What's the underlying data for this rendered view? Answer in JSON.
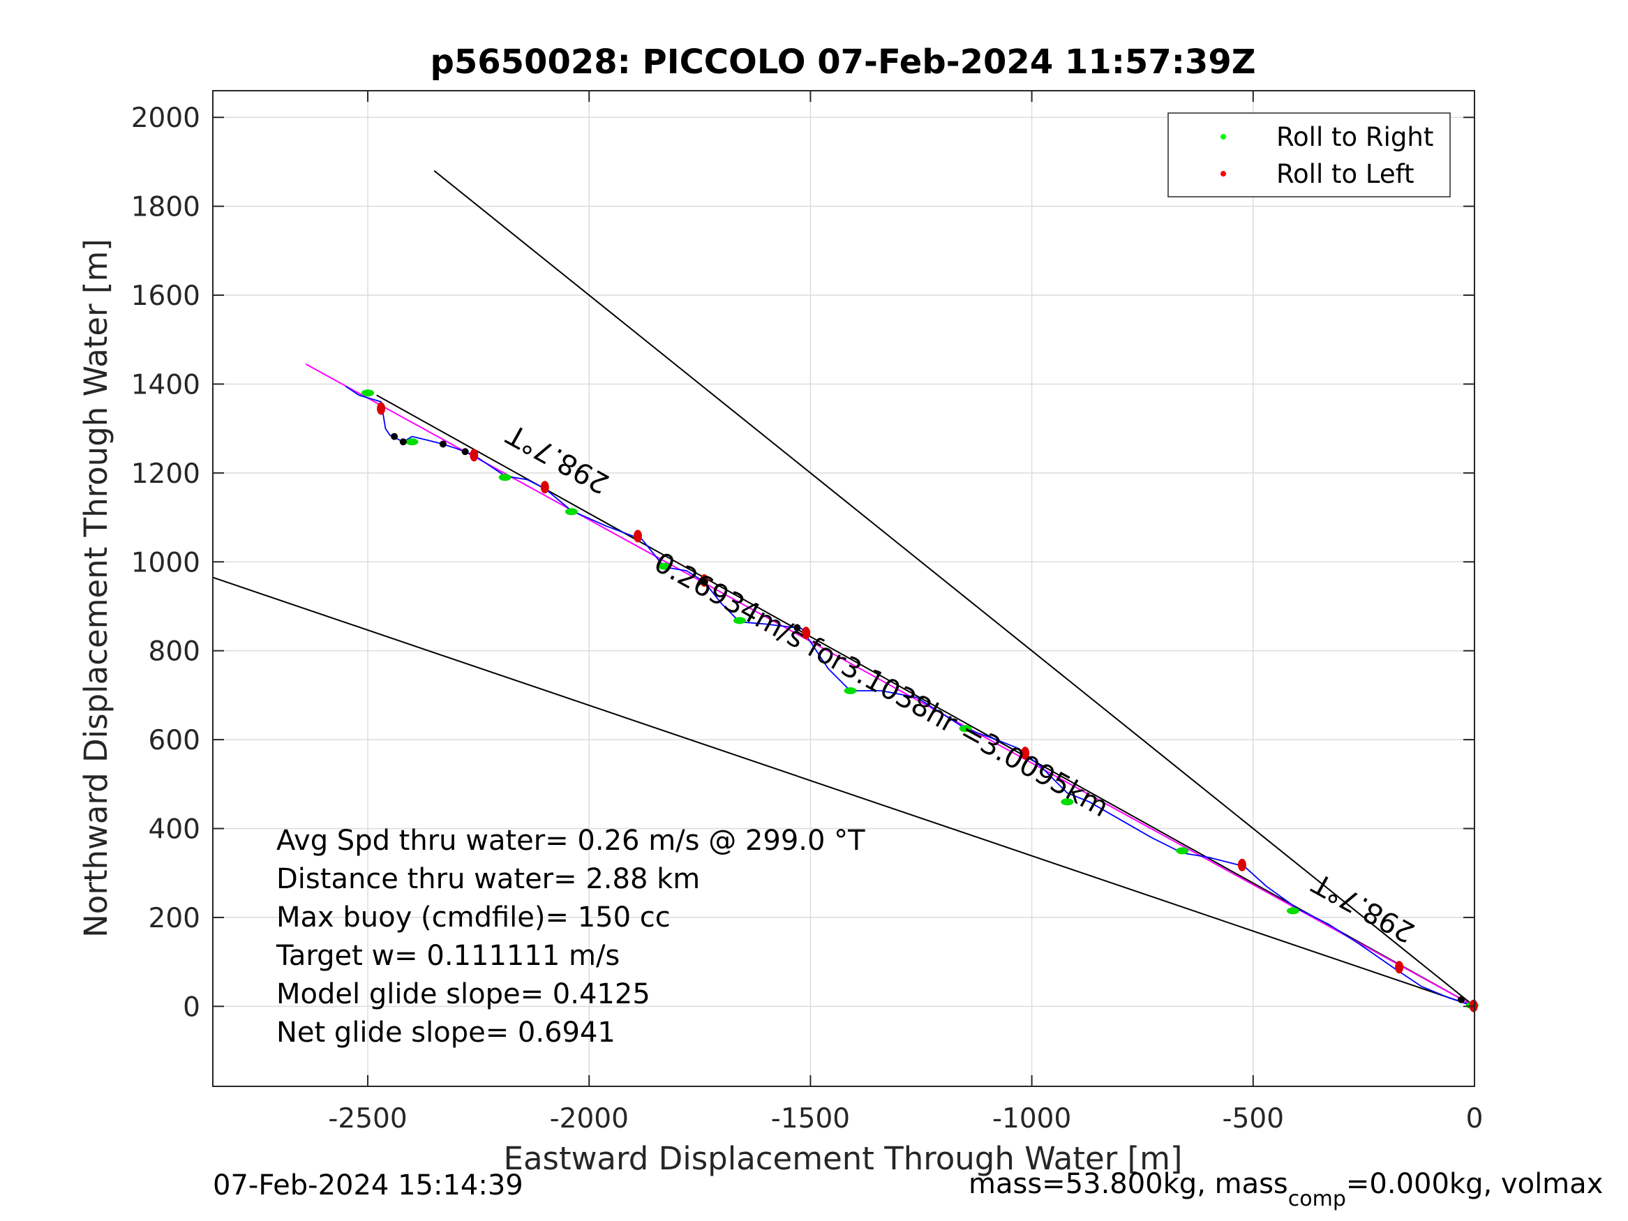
{
  "chart_data": {
    "type": "line",
    "title": "p5650028: PICCOLO 07-Feb-2024 11:57:39Z",
    "xlabel": "Eastward Displacement Through Water [m]",
    "ylabel": "Northward Displacement Through Water [m]",
    "xlim": [
      -2850,
      0
    ],
    "ylim": [
      -180,
      2060
    ],
    "xticks": [
      -2500,
      -2000,
      -1500,
      -1000,
      -500,
      0
    ],
    "yticks": [
      0,
      200,
      400,
      600,
      800,
      1000,
      1200,
      1400,
      1600,
      1800,
      2000
    ],
    "grid": true,
    "legend_position": "top-right",
    "legend": [
      {
        "label": "Roll to Right",
        "color": "#00ff00"
      },
      {
        "label": "Roll to Left",
        "color": "#ff0000"
      }
    ],
    "track": {
      "color": "#0000ff",
      "points": [
        [
          0,
          0
        ],
        [
          -60,
          20
        ],
        [
          -120,
          45
        ],
        [
          -180,
          85
        ],
        [
          -260,
          140
        ],
        [
          -330,
          185
        ],
        [
          -400,
          220
        ],
        [
          -470,
          270
        ],
        [
          -520,
          315
        ],
        [
          -600,
          335
        ],
        [
          -660,
          345
        ],
        [
          -730,
          380
        ],
        [
          -800,
          420
        ],
        [
          -870,
          460
        ],
        [
          -920,
          480
        ],
        [
          -980,
          540
        ],
        [
          -1030,
          580
        ],
        [
          -1080,
          600
        ],
        [
          -1150,
          625
        ],
        [
          -1260,
          695
        ],
        [
          -1340,
          710
        ],
        [
          -1410,
          710
        ],
        [
          -1460,
          760
        ],
        [
          -1500,
          820
        ],
        [
          -1520,
          850
        ],
        [
          -1600,
          860
        ],
        [
          -1660,
          865
        ],
        [
          -1700,
          905
        ],
        [
          -1740,
          955
        ],
        [
          -1780,
          980
        ],
        [
          -1830,
          988
        ],
        [
          -1880,
          1050
        ],
        [
          -1960,
          1080
        ],
        [
          -2040,
          1115
        ],
        [
          -2100,
          1165
        ],
        [
          -2140,
          1185
        ],
        [
          -2190,
          1193
        ],
        [
          -2260,
          1240
        ],
        [
          -2300,
          1255
        ],
        [
          -2330,
          1265
        ],
        [
          -2370,
          1275
        ],
        [
          -2400,
          1282
        ],
        [
          -2420,
          1270
        ],
        [
          -2450,
          1285
        ],
        [
          -2460,
          1300
        ],
        [
          -2470,
          1360
        ],
        [
          -2520,
          1375
        ],
        [
          -2550,
          1395
        ]
      ]
    },
    "mean_heading_line": {
      "color": "#ff00ff",
      "points": [
        [
          0,
          0
        ],
        [
          -2640,
          1445
        ]
      ]
    },
    "reference_lines": [
      {
        "color": "#000000",
        "points": [
          [
            0,
            0
          ],
          [
            -2350,
            1880
          ]
        ]
      },
      {
        "color": "#000000",
        "points": [
          [
            0,
            0
          ],
          [
            -2850,
            965
          ]
        ]
      },
      {
        "color": "#000000",
        "points": [
          [
            0,
            0
          ],
          [
            -2480,
            1375
          ]
        ]
      }
    ],
    "roll_right_points": [
      [
        -5,
        2
      ],
      [
        -410,
        215
      ],
      [
        -660,
        350
      ],
      [
        -920,
        460
      ],
      [
        -1150,
        625
      ],
      [
        -1410,
        710
      ],
      [
        -1660,
        868
      ],
      [
        -1830,
        990
      ],
      [
        -2040,
        1113
      ],
      [
        -2190,
        1190
      ],
      [
        -2400,
        1270
      ],
      [
        -2500,
        1380
      ]
    ],
    "roll_left_points": [
      [
        -2,
        1
      ],
      [
        -170,
        88
      ],
      [
        -525,
        318
      ],
      [
        -1015,
        570
      ],
      [
        -1510,
        840
      ],
      [
        -1740,
        958
      ],
      [
        -1890,
        1058
      ],
      [
        -2100,
        1168
      ],
      [
        -2260,
        1240
      ],
      [
        -2470,
        1345
      ]
    ],
    "dive_start_points": [
      [
        -30,
        15
      ],
      [
        -1530,
        852
      ],
      [
        -1740,
        955
      ],
      [
        -2280,
        1248
      ],
      [
        -2330,
        1265
      ],
      [
        -2420,
        1270
      ],
      [
        -2440,
        1282
      ]
    ],
    "annotations": [
      {
        "text": "Avg Spd thru water=  0.26 m/s @ 299.0 °T"
      },
      {
        "text": "Distance thru water=  2.88 km"
      },
      {
        "text": "Max buoy (cmdfile)= 150 cc"
      },
      {
        "text": "Target w= 0.111111 m/s"
      },
      {
        "text": "Model glide slope= 0.4125"
      },
      {
        "text": "Net glide slope= 0.6941"
      }
    ],
    "rotated_labels": [
      {
        "text": "298.7°T",
        "at": [
          -2060,
          1250
        ],
        "angle_deg": 209
      },
      {
        "text": "298.7°T",
        "at": [
          -240,
          240
        ],
        "angle_deg": 209
      },
      {
        "text": "0.26934m/s for3.1038hr =3.0095km",
        "at": [
          -1350,
          705
        ],
        "angle_deg": 29
      }
    ]
  },
  "footer": {
    "left": "07-Feb-2024 15:14:39",
    "right_pre": "mass=53.800kg, mass",
    "right_sub": "comp",
    "right_post": "=0.000kg, volmax"
  }
}
